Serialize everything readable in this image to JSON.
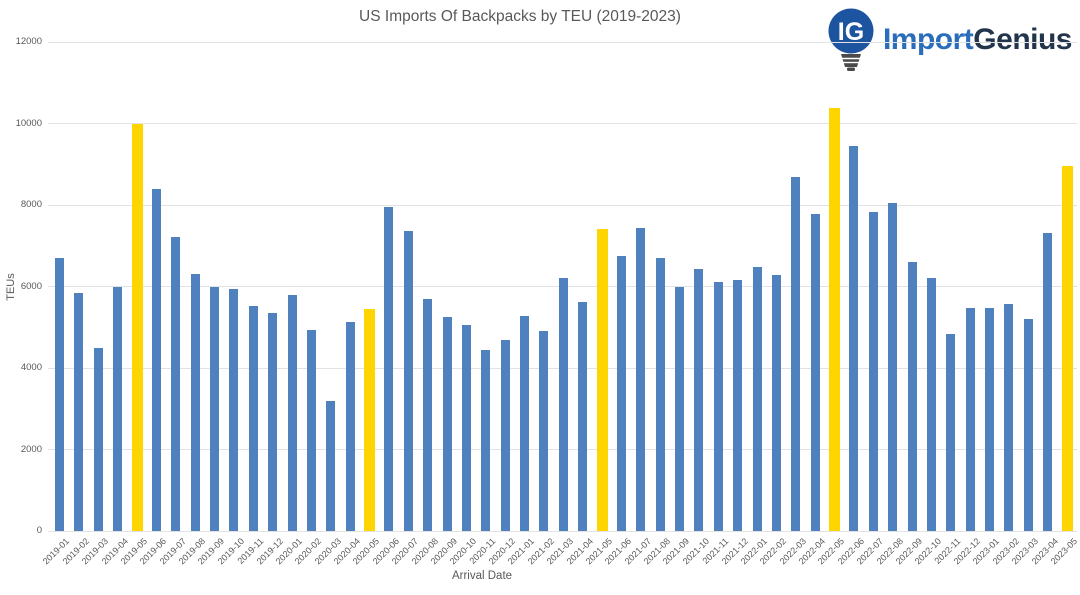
{
  "chart": {
    "title": "US Imports Of Backpacks by TEU (2019-2023)",
    "xlabel": "Arrival Date",
    "ylabel": "TEUs"
  },
  "logo": {
    "icon_text": "IG",
    "part1": "Import",
    "part2": "Genius"
  },
  "colors": {
    "bar_blue": "#4E81BD",
    "bar_yellow": "#FFD500",
    "gridline": "#E2E2E2",
    "axis_text": "#595959",
    "title_text": "#595959",
    "logo_blue": "#2A6EBB",
    "logo_dark": "#22354C",
    "bulb_blue": "#1D54A0",
    "bulb_base": "#4A4A4A"
  },
  "chart_data": {
    "type": "bar",
    "title": "US Imports Of Backpacks by TEU (2019-2023)",
    "xlabel": "Arrival Date",
    "ylabel": "TEUs",
    "ylim": [
      0,
      12000
    ],
    "yticks": [
      0,
      2000,
      4000,
      6000,
      8000,
      10000,
      12000
    ],
    "grid": true,
    "legend": false,
    "categories": [
      "2019-01",
      "2019-02",
      "2019-03",
      "2019-04",
      "2019-05",
      "2019-06",
      "2019-07",
      "2019-08",
      "2019-09",
      "2019-10",
      "2019-11",
      "2019-12",
      "2020-01",
      "2020-02",
      "2020-03",
      "2020-04",
      "2020-05",
      "2020-06",
      "2020-07",
      "2020-08",
      "2020-09",
      "2020-10",
      "2020-11",
      "2020-12",
      "2021-01",
      "2021-02",
      "2021-03",
      "2021-04",
      "2021-05",
      "2021-06",
      "2021-07",
      "2021-08",
      "2021-09",
      "2021-10",
      "2021-11",
      "2021-12",
      "2022-01",
      "2022-02",
      "2022-03",
      "2022-04",
      "2022-05",
      "2022-06",
      "2022-07",
      "2022-08",
      "2022-09",
      "2022-10",
      "2022-11",
      "2022-12",
      "2023-01",
      "2023-02",
      "2023-03",
      "2023-04",
      "2023-05"
    ],
    "values": [
      6690,
      5850,
      4480,
      5990,
      10000,
      8390,
      7220,
      6300,
      5980,
      5950,
      5510,
      5340,
      5790,
      4930,
      3190,
      5140,
      5440,
      7940,
      7360,
      5690,
      5240,
      5060,
      4450,
      4690,
      5280,
      4910,
      6200,
      5610,
      7410,
      6740,
      7430,
      6690,
      5980,
      6430,
      6110,
      6160,
      6470,
      6280,
      8680,
      7780,
      10370,
      9440,
      7820,
      8040,
      6590,
      6200,
      4830,
      5480,
      5470,
      5580,
      5210,
      7310,
      8950
    ],
    "highlighted_categories": [
      "2019-05",
      "2020-05",
      "2021-05",
      "2022-05",
      "2023-05"
    ],
    "bar_color": "#4E81BD",
    "highlight_color": "#FFD500"
  }
}
